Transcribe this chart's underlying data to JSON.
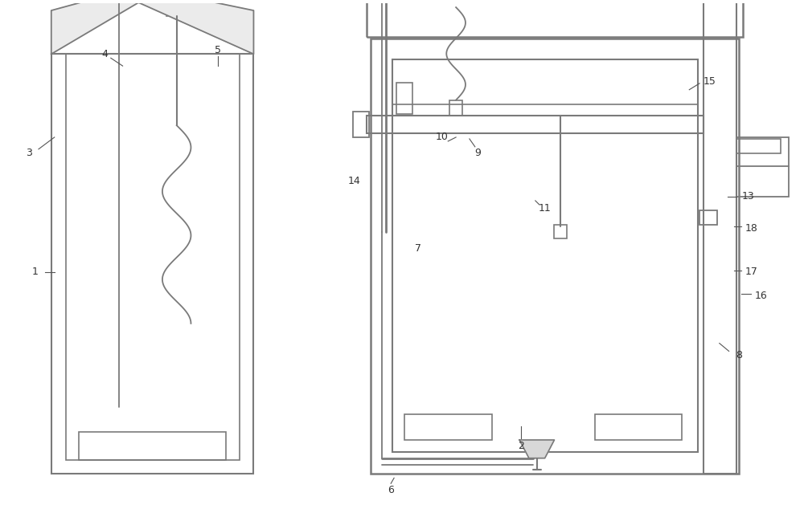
{
  "bg_color": "#ffffff",
  "line_color": "#7a7a7a",
  "fig_width": 10.0,
  "fig_height": 6.39,
  "label_color": "#333333",
  "label_fontsize": 9
}
